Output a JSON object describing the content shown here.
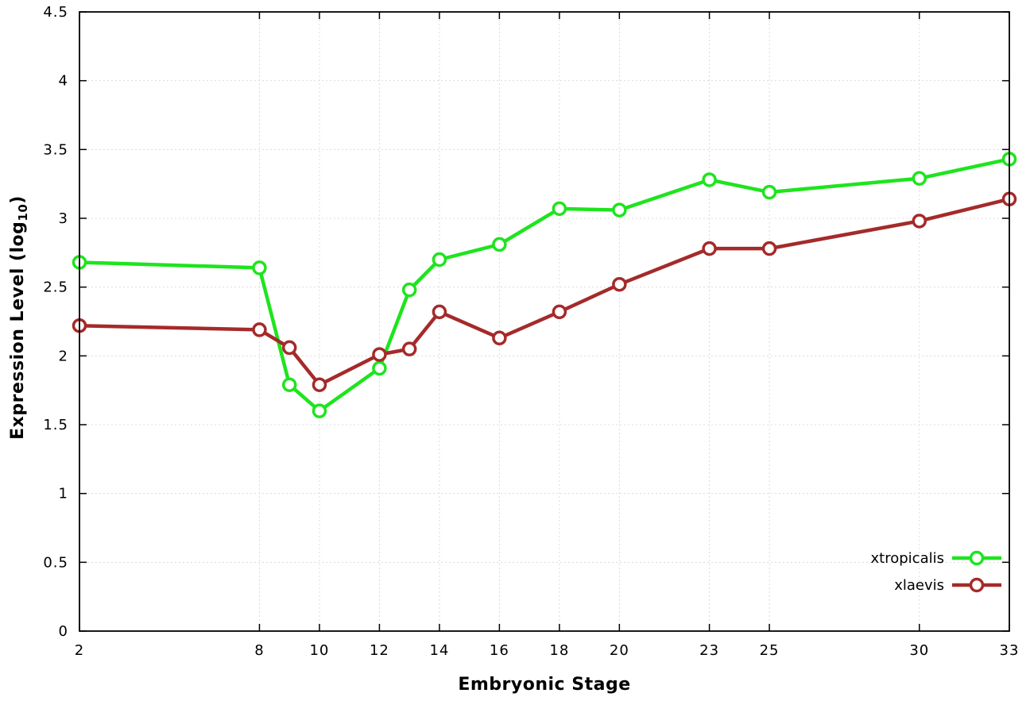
{
  "chart": {
    "ylabel_prefix": "Expression Level (log",
    "ylabel_sub": "10",
    "ylabel_suffix": ")",
    "xlabel": "Embryonic Stage"
  },
  "chart_data": {
    "type": "line",
    "title": "",
    "xlabel": "Embryonic Stage",
    "ylabel": "Expression Level (log10)",
    "x": [
      2,
      8,
      9,
      10,
      12,
      13,
      14,
      16,
      18,
      20,
      23,
      25,
      30,
      33
    ],
    "series": [
      {
        "name": "xtropicalis",
        "color": "#1ee41e",
        "values": [
          2.68,
          2.64,
          1.79,
          1.6,
          1.91,
          2.48,
          2.7,
          2.81,
          3.07,
          3.06,
          3.28,
          3.19,
          3.29,
          3.43
        ]
      },
      {
        "name": "xlaevis",
        "color": "#a52a2a",
        "values": [
          2.22,
          2.19,
          2.06,
          1.79,
          2.01,
          2.05,
          2.32,
          2.13,
          2.32,
          2.52,
          2.78,
          2.78,
          2.98,
          3.14
        ]
      }
    ],
    "x_ticks": [
      2,
      8,
      10,
      12,
      14,
      16,
      18,
      20,
      23,
      25,
      30,
      33
    ],
    "y_ticks": [
      0,
      0.5,
      1,
      1.5,
      2,
      2.5,
      3,
      3.5,
      4,
      4.5
    ],
    "xlim": [
      2,
      33
    ],
    "ylim": [
      0,
      4.5
    ],
    "grid": true,
    "grid_color": "#dcdcdc",
    "border_color": "#000000",
    "legend_position": "bottom-right",
    "legend_entries": [
      "xtropicalis",
      "xlaevis"
    ]
  }
}
